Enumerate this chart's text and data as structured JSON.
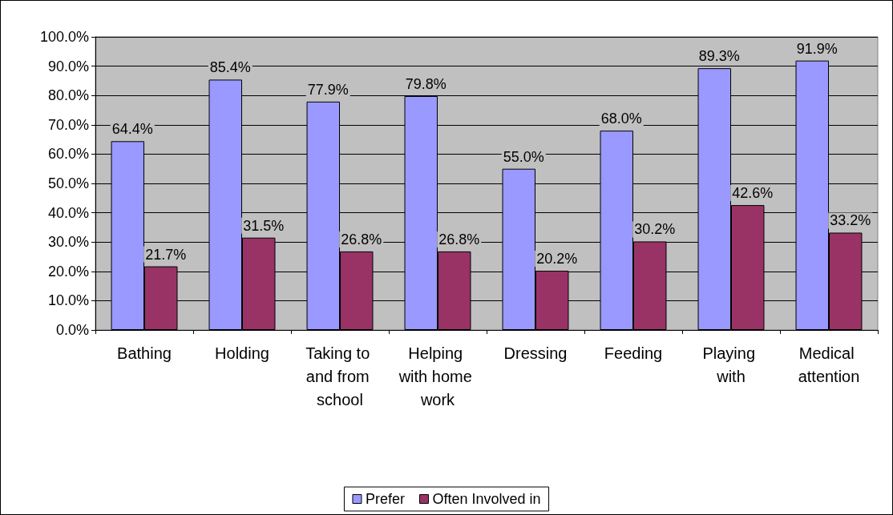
{
  "chart_data": {
    "type": "bar",
    "categories": [
      "Bathing",
      "Holding",
      "Taking to and from school",
      "Helping with home work",
      "Dressing",
      "Feeding",
      "Playing with",
      "Medical attention"
    ],
    "series": [
      {
        "name": "Prefer",
        "color": "#9999ff",
        "values": [
          64.4,
          85.4,
          77.9,
          79.8,
          55.0,
          68.0,
          89.3,
          91.9
        ],
        "value_labels": [
          "64.4%",
          "85.4%",
          "77.9%",
          "79.8%",
          "55.0%",
          "68.0%",
          "89.3%",
          "91.9%"
        ]
      },
      {
        "name": "Often Involved in",
        "color": "#993366",
        "values": [
          21.7,
          31.5,
          26.8,
          26.8,
          20.2,
          30.2,
          42.6,
          33.2
        ],
        "value_labels": [
          "21.7%",
          "31.5%",
          "26.8%",
          "26.8%",
          "20.2%",
          "30.2%",
          "42.6%",
          "33.2%"
        ]
      }
    ],
    "ylim": [
      0,
      100
    ],
    "yticks": [
      {
        "value": 0,
        "label": "0.0%"
      },
      {
        "value": 10,
        "label": "10.0%"
      },
      {
        "value": 20,
        "label": "20.0%"
      },
      {
        "value": 30,
        "label": "30.0%"
      },
      {
        "value": 40,
        "label": "40.0%"
      },
      {
        "value": 50,
        "label": "50.0%"
      },
      {
        "value": 60,
        "label": "60.0%"
      },
      {
        "value": 70,
        "label": "70.0%"
      },
      {
        "value": 80,
        "label": "80.0%"
      },
      {
        "value": 90,
        "label": "90.0%"
      },
      {
        "value": 100,
        "label": "100.0%"
      }
    ],
    "grid": "y",
    "legend": "bottom"
  }
}
